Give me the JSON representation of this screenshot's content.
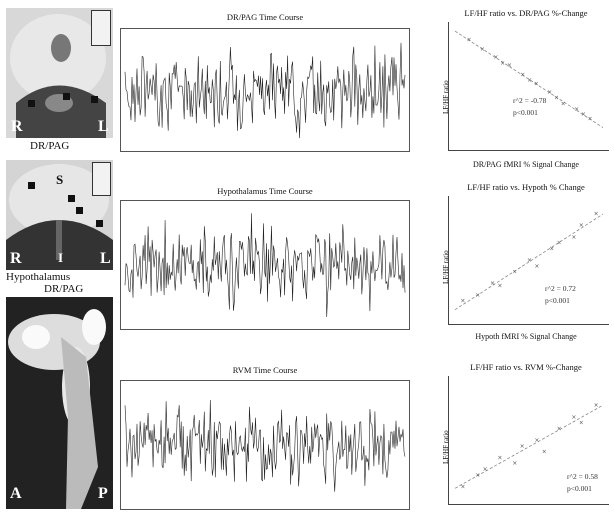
{
  "brain_panels": {
    "axial_top": {
      "caption": "DR/PAG",
      "left_label": "R",
      "right_label": "L"
    },
    "coronal": {
      "caption": "Hypothalamus",
      "center_label": "S",
      "left_label": "R",
      "right_label": "L",
      "bottom_label": "I"
    },
    "sagittal": {
      "caption": "DR/PAG",
      "left_label": "A",
      "right_label": "P"
    }
  },
  "chart_data": [
    {
      "type": "line",
      "title": "DR/PAG Time Course",
      "series": [
        {
          "values": []
        }
      ],
      "grid": false
    },
    {
      "type": "line",
      "title": "Hypothalamus Time Course",
      "series": [
        {
          "values": []
        }
      ],
      "grid": false
    },
    {
      "type": "line",
      "title": "RVM Time Course",
      "series": [
        {
          "values": []
        }
      ],
      "grid": false
    },
    {
      "type": "scatter",
      "title": "LF/HF ratio vs. DR/PAG %-Change",
      "xlabel": "DR/PAG fMRI % Signal Change",
      "ylabel": "LF/HF ratio",
      "annotations": [
        "r^2 = -0.78",
        "p<0.001"
      ],
      "trend": "negative",
      "x": [
        0.1,
        0.2,
        0.3,
        0.35,
        0.4,
        0.5,
        0.55,
        0.6,
        0.7,
        0.75,
        0.8,
        0.9,
        0.95,
        1.0
      ],
      "y": [
        1.5,
        1.42,
        1.35,
        1.3,
        1.28,
        1.2,
        1.15,
        1.12,
        1.05,
        1.0,
        0.95,
        0.9,
        0.86,
        0.82
      ],
      "xlim": [
        0,
        1.1
      ],
      "ylim": [
        0.6,
        1.6
      ]
    },
    {
      "type": "scatter",
      "title": "LF/HF ratio vs. Hypoth % Change",
      "xlabel": "Hypoth fMRI % Signal Change",
      "ylabel": "LF/HF ratio",
      "annotations": [
        "r^2 = 0.72",
        "p<0.001"
      ],
      "trend": "positive",
      "x": [
        0.05,
        0.15,
        0.25,
        0.3,
        0.4,
        0.5,
        0.55,
        0.65,
        0.7,
        0.8,
        0.85,
        0.95
      ],
      "y": [
        0.75,
        0.8,
        0.9,
        0.88,
        1.0,
        1.1,
        1.05,
        1.2,
        1.25,
        1.3,
        1.4,
        1.5
      ],
      "xlim": [
        0,
        1.0
      ],
      "ylim": [
        0.6,
        1.6
      ]
    },
    {
      "type": "scatter",
      "title": "LF/HF ratio vs. RVM %-Change",
      "xlabel": "",
      "ylabel": "LF/HF ratio",
      "annotations": [
        "r^2 = 0.58",
        "p<0.001"
      ],
      "trend": "positive",
      "x": [
        0.05,
        0.15,
        0.2,
        0.3,
        0.4,
        0.45,
        0.55,
        0.6,
        0.7,
        0.8,
        0.85,
        0.95
      ],
      "y": [
        0.7,
        0.8,
        0.85,
        0.95,
        0.9,
        1.05,
        1.1,
        1.0,
        1.2,
        1.3,
        1.25,
        1.4
      ],
      "xlim": [
        0,
        1.0
      ],
      "ylim": [
        0.6,
        1.6
      ]
    }
  ]
}
